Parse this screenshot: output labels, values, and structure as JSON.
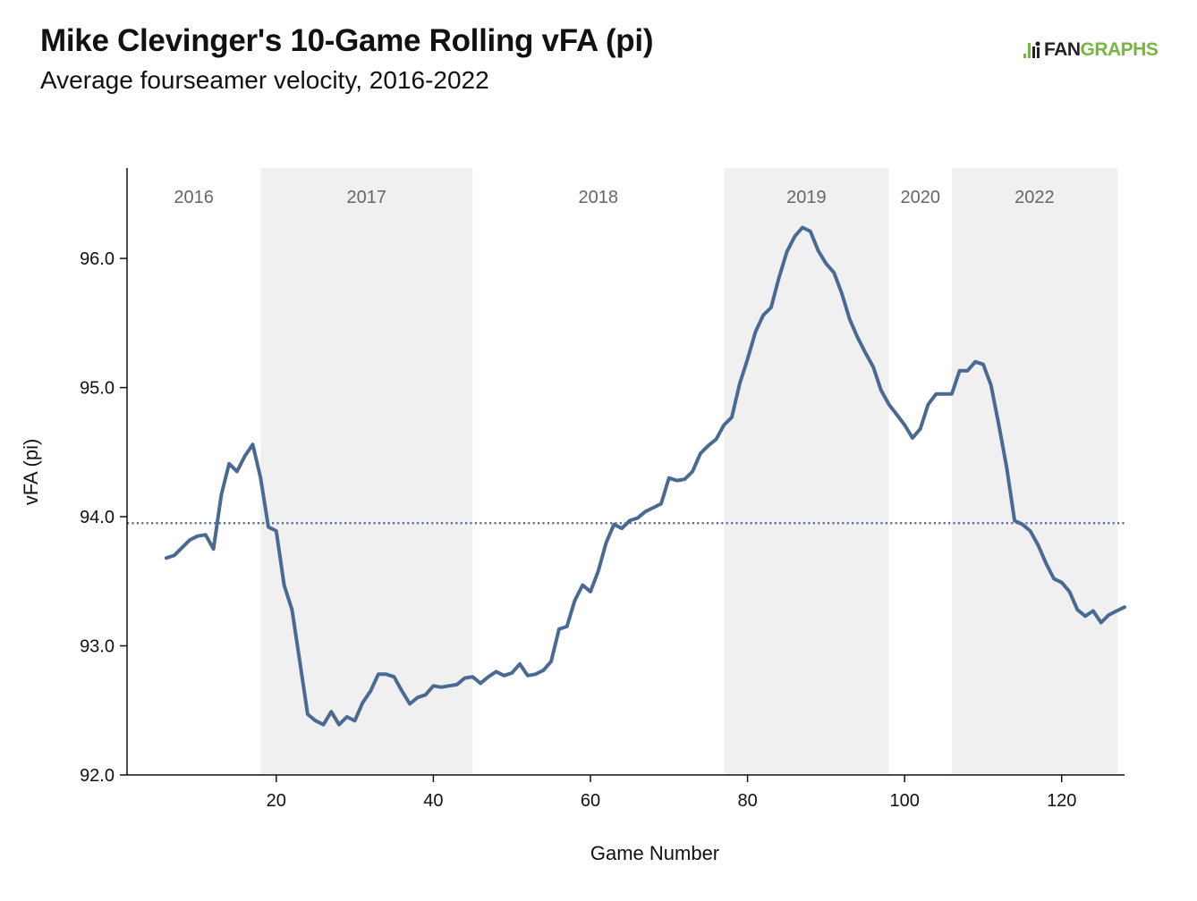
{
  "header": {
    "title": "Mike Clevinger's 10-Game Rolling vFA (pi)",
    "subtitle": "Average fourseamer velocity, 2016-2022"
  },
  "logo": {
    "part1": "FAN",
    "part2": "GRAPHS",
    "icon": "fangraphs-logo-icon",
    "accent_color": "#79b542"
  },
  "chart_data": {
    "type": "line",
    "xlabel": "Game Number",
    "ylabel": "vFA (pi)",
    "xlim": [
      1,
      128
    ],
    "ylim": [
      92.0,
      96.7
    ],
    "x_ticks": [
      20,
      40,
      60,
      80,
      100,
      120
    ],
    "y_ticks": [
      92.0,
      93.0,
      94.0,
      95.0,
      96.0
    ],
    "y_tick_labels": [
      "92.0",
      "93.0",
      "94.0",
      "95.0",
      "96.0"
    ],
    "reference_line": {
      "value": 93.95,
      "style": "dotted",
      "color": "#4a6a94"
    },
    "line_color": "#4a6a94",
    "seasons": [
      {
        "label": "2016",
        "start": 1,
        "end": 18,
        "shaded": false
      },
      {
        "label": "2017",
        "start": 18,
        "end": 45,
        "shaded": true
      },
      {
        "label": "2018",
        "start": 45,
        "end": 77,
        "shaded": false
      },
      {
        "label": "2019",
        "start": 77,
        "end": 98,
        "shaded": true
      },
      {
        "label": "2020",
        "start": 98,
        "end": 106,
        "shaded": false
      },
      {
        "label": "2022",
        "start": 106,
        "end": 128,
        "shaded": true
      }
    ],
    "series": [
      {
        "x": [
          6,
          7,
          8,
          9,
          10,
          11,
          12,
          13,
          14,
          15,
          16,
          17,
          18,
          19,
          20,
          21,
          22,
          23,
          24,
          25,
          26,
          27,
          28,
          29,
          30,
          31,
          32,
          33,
          34,
          35,
          36,
          37,
          38,
          39,
          40,
          41,
          42,
          43,
          44,
          45,
          46,
          47,
          48,
          49,
          50,
          51,
          52,
          53,
          54,
          55,
          56,
          57,
          58,
          59,
          60,
          61,
          62,
          63,
          64,
          65,
          66,
          67,
          68,
          69,
          70,
          71,
          72,
          73,
          74,
          75,
          76,
          77,
          78,
          79,
          80,
          81,
          82,
          83,
          84,
          85,
          86,
          87,
          88,
          89,
          90,
          91,
          92,
          93,
          94,
          95,
          96,
          97,
          98,
          99,
          100,
          101,
          102,
          103,
          104,
          105,
          106,
          107,
          108,
          109,
          110,
          111,
          112,
          113,
          114,
          115,
          116,
          117,
          118,
          119,
          120,
          121,
          122,
          123,
          124,
          125,
          126,
          127,
          128
        ],
        "y": [
          93.68,
          93.7,
          93.76,
          93.82,
          93.85,
          93.86,
          93.75,
          94.17,
          94.41,
          94.35,
          94.47,
          94.56,
          94.3,
          93.92,
          93.89,
          93.47,
          93.28,
          92.88,
          92.47,
          92.42,
          92.39,
          92.49,
          92.39,
          92.45,
          92.42,
          92.56,
          92.65,
          92.78,
          92.78,
          92.76,
          92.65,
          92.55,
          92.6,
          92.62,
          92.69,
          92.68,
          92.69,
          92.7,
          92.75,
          92.76,
          92.71,
          92.76,
          92.8,
          92.77,
          92.79,
          92.86,
          92.77,
          92.78,
          92.81,
          92.88,
          93.13,
          93.15,
          93.35,
          93.47,
          93.42,
          93.58,
          93.8,
          93.94,
          93.91,
          93.97,
          93.99,
          94.04,
          94.07,
          94.1,
          94.3,
          94.28,
          94.29,
          94.35,
          94.49,
          94.55,
          94.6,
          94.71,
          94.77,
          95.03,
          95.22,
          95.43,
          95.56,
          95.62,
          95.85,
          96.05,
          96.17,
          96.24,
          96.21,
          96.06,
          95.96,
          95.89,
          95.73,
          95.53,
          95.39,
          95.27,
          95.16,
          94.98,
          94.87,
          94.79,
          94.71,
          94.61,
          94.68,
          94.87,
          94.95,
          94.95,
          94.95,
          95.13,
          95.13,
          95.2,
          95.18,
          95.02,
          94.71,
          94.38,
          93.97,
          93.94,
          93.89,
          93.78,
          93.64,
          93.52,
          93.49,
          93.42,
          93.28,
          93.23,
          93.27,
          93.18,
          93.24,
          93.27,
          93.3
        ]
      }
    ],
    "grid": false,
    "legend": "none"
  }
}
